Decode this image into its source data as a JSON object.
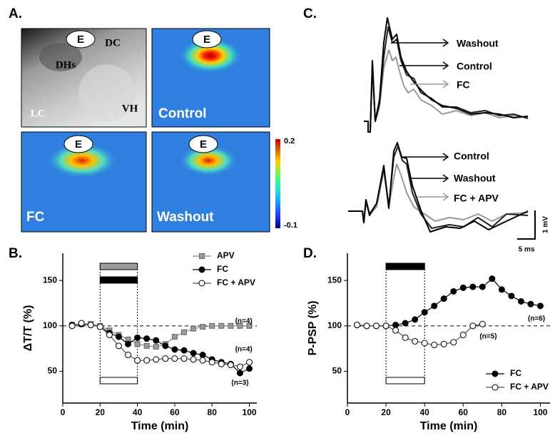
{
  "panel_labels": [
    "A.",
    "B.",
    "C.",
    "D."
  ],
  "panel_a": {
    "images": [
      {
        "tags": [
          "E",
          "DC",
          "DHs",
          "LC",
          "VH"
        ]
      },
      {
        "tags": [
          "E"
        ],
        "label": "Control"
      },
      {
        "tags": [
          "E"
        ],
        "label": "FC"
      },
      {
        "tags": [
          "E"
        ],
        "label": "Washout"
      }
    ],
    "colorbar": {
      "max": 0.2,
      "min": -0.1
    }
  },
  "panel_c": {
    "top_labels": [
      "Washout",
      "Control",
      "FC"
    ],
    "bottom_labels": [
      "Control",
      "Washout",
      "FC + APV"
    ],
    "scale_v": "1 mV",
    "scale_t": "5 ms"
  },
  "chart_data": [
    {
      "type": "line",
      "x_label": "Time (min)",
      "y_label": "ΔT/T (%)",
      "x": [
        5,
        10,
        15,
        20,
        25,
        30,
        35,
        40,
        45,
        50,
        55,
        60,
        65,
        70,
        75,
        80,
        85,
        90,
        95,
        100
      ],
      "xlim": [
        0,
        104
      ],
      "xticks": [
        0,
        20,
        40,
        60,
        80,
        100
      ],
      "ylim": [
        15,
        180
      ],
      "yticks": [
        50,
        100,
        150
      ],
      "refline": 100,
      "legend": "top-right",
      "drug_bars": [
        {
          "start": 20,
          "end": 40,
          "color": "#9a9a9a",
          "position": "top"
        },
        {
          "start": 20,
          "end": 40,
          "color": "#000000",
          "position": "top"
        },
        {
          "start": 20,
          "end": 40,
          "color": "#ffffff",
          "position": "bottom"
        }
      ],
      "series": [
        {
          "name": "APV",
          "color": "#8a8a8a",
          "marker": "square",
          "fill": "#9a9a9a",
          "values": [
            101,
            102,
            102,
            100,
            95,
            90,
            85,
            80,
            78,
            77,
            80,
            88,
            93,
            97,
            99,
            100,
            100,
            100,
            100,
            100
          ]
        },
        {
          "name": "FC",
          "color": "#000000",
          "marker": "circle",
          "fill": "#000000",
          "values": [
            101,
            102,
            101,
            99,
            92,
            88,
            80,
            87,
            86,
            84,
            78,
            74,
            73,
            70,
            68,
            63,
            60,
            58,
            48,
            53
          ]
        },
        {
          "name": "FC + APV",
          "color": "#555555",
          "marker": "circle",
          "fill": "#ffffff",
          "values": [
            100,
            103,
            101,
            99,
            90,
            78,
            68,
            62,
            62,
            63,
            64,
            64,
            64,
            63,
            62,
            60,
            58,
            57,
            55,
            60
          ]
        }
      ],
      "annotations": [
        {
          "text": "(n=4)",
          "x": 97,
          "y": 105
        },
        {
          "text": "(n=4)",
          "x": 97,
          "y": 74
        },
        {
          "text": "(n=3)",
          "x": 95,
          "y": 37
        }
      ]
    },
    {
      "type": "line",
      "x_label": "Time (min)",
      "y_label": "P-PSP (%)",
      "x": [
        5,
        10,
        15,
        20,
        25,
        30,
        35,
        40,
        45,
        50,
        55,
        60,
        65,
        70,
        75,
        80,
        85,
        90,
        95,
        100
      ],
      "xlim": [
        0,
        105
      ],
      "xticks": [
        0,
        20,
        40,
        60,
        80,
        100
      ],
      "ylim": [
        15,
        180
      ],
      "yticks": [
        50,
        100,
        150
      ],
      "refline": 100,
      "legend": "bottom-right",
      "drug_bars": [
        {
          "start": 20,
          "end": 40,
          "color": "#000000",
          "position": "top"
        },
        {
          "start": 20,
          "end": 40,
          "color": "#ffffff",
          "position": "bottom"
        }
      ],
      "series": [
        {
          "name": "FC",
          "color": "#000000",
          "marker": "circle",
          "fill": "#000000",
          "values": [
            101,
            100,
            100,
            100,
            101,
            103,
            107,
            115,
            122,
            130,
            138,
            142,
            143,
            143,
            152,
            140,
            133,
            127,
            124,
            122
          ]
        },
        {
          "name": "FC + APV",
          "color": "#555555",
          "marker": "circle",
          "fill": "#ffffff",
          "values": [
            101,
            100,
            100,
            100,
            95,
            87,
            83,
            81,
            79,
            80,
            82,
            90,
            100,
            102,
            null,
            null,
            null,
            null,
            null,
            null
          ]
        }
      ],
      "annotations": [
        {
          "text": "(n=6)",
          "x": 98,
          "y": 108
        },
        {
          "text": "(n=5)",
          "x": 73,
          "y": 88
        }
      ]
    }
  ]
}
